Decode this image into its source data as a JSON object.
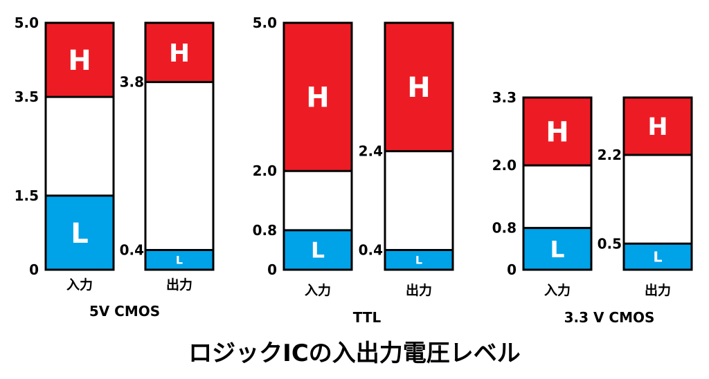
{
  "title": "ロジックICの入出力電圧レベル",
  "colors": {
    "high": "#ed1c24",
    "low": "#00a2e8",
    "undefined": "#ffffff",
    "outline": "#000000"
  },
  "groups": [
    {
      "name": "5V CMOS",
      "vmax": 5.0,
      "columns": [
        {
          "label": "入力",
          "high_text": "H",
          "low_text": "L",
          "high_min": 3.5,
          "low_max": 1.5,
          "ticks": [
            {
              "value": 5.0,
              "label": "5.0"
            },
            {
              "value": 3.5,
              "label": "3.5"
            },
            {
              "value": 1.5,
              "label": "1.5"
            },
            {
              "value": 0,
              "label": "0"
            }
          ]
        },
        {
          "label": "出力",
          "high_text": "H",
          "low_text": "L",
          "high_min": 3.8,
          "low_max": 0.4,
          "ticks": [
            {
              "value": 3.8,
              "label": "3.8"
            },
            {
              "value": 0.4,
              "label": "0.4"
            }
          ]
        }
      ]
    },
    {
      "name": "TTL",
      "vmax": 5.0,
      "columns": [
        {
          "label": "入力",
          "high_text": "H",
          "low_text": "L",
          "high_min": 2.0,
          "low_max": 0.8,
          "ticks": [
            {
              "value": 5.0,
              "label": "5.0"
            },
            {
              "value": 2.0,
              "label": "2.0"
            },
            {
              "value": 0.8,
              "label": "0.8"
            },
            {
              "value": 0,
              "label": "0"
            }
          ]
        },
        {
          "label": "出力",
          "high_text": "H",
          "low_text": "L",
          "high_min": 2.4,
          "low_max": 0.4,
          "ticks": [
            {
              "value": 2.4,
              "label": "2.4"
            },
            {
              "value": 0.4,
              "label": "0.4"
            }
          ]
        }
      ]
    },
    {
      "name": "3.3 V CMOS",
      "vmax": 3.3,
      "columns": [
        {
          "label": "入力",
          "high_text": "H",
          "low_text": "L",
          "high_min": 2.0,
          "low_max": 0.8,
          "ticks": [
            {
              "value": 3.3,
              "label": "3.3"
            },
            {
              "value": 2.0,
              "label": "2.0"
            },
            {
              "value": 0.8,
              "label": "0.8"
            },
            {
              "value": 0,
              "label": "0"
            }
          ]
        },
        {
          "label": "出力",
          "high_text": "H",
          "low_text": "L",
          "high_min": 2.2,
          "low_max": 0.5,
          "ticks": [
            {
              "value": 2.2,
              "label": "2.2"
            },
            {
              "value": 0.5,
              "label": "0.5"
            }
          ]
        }
      ]
    }
  ]
}
